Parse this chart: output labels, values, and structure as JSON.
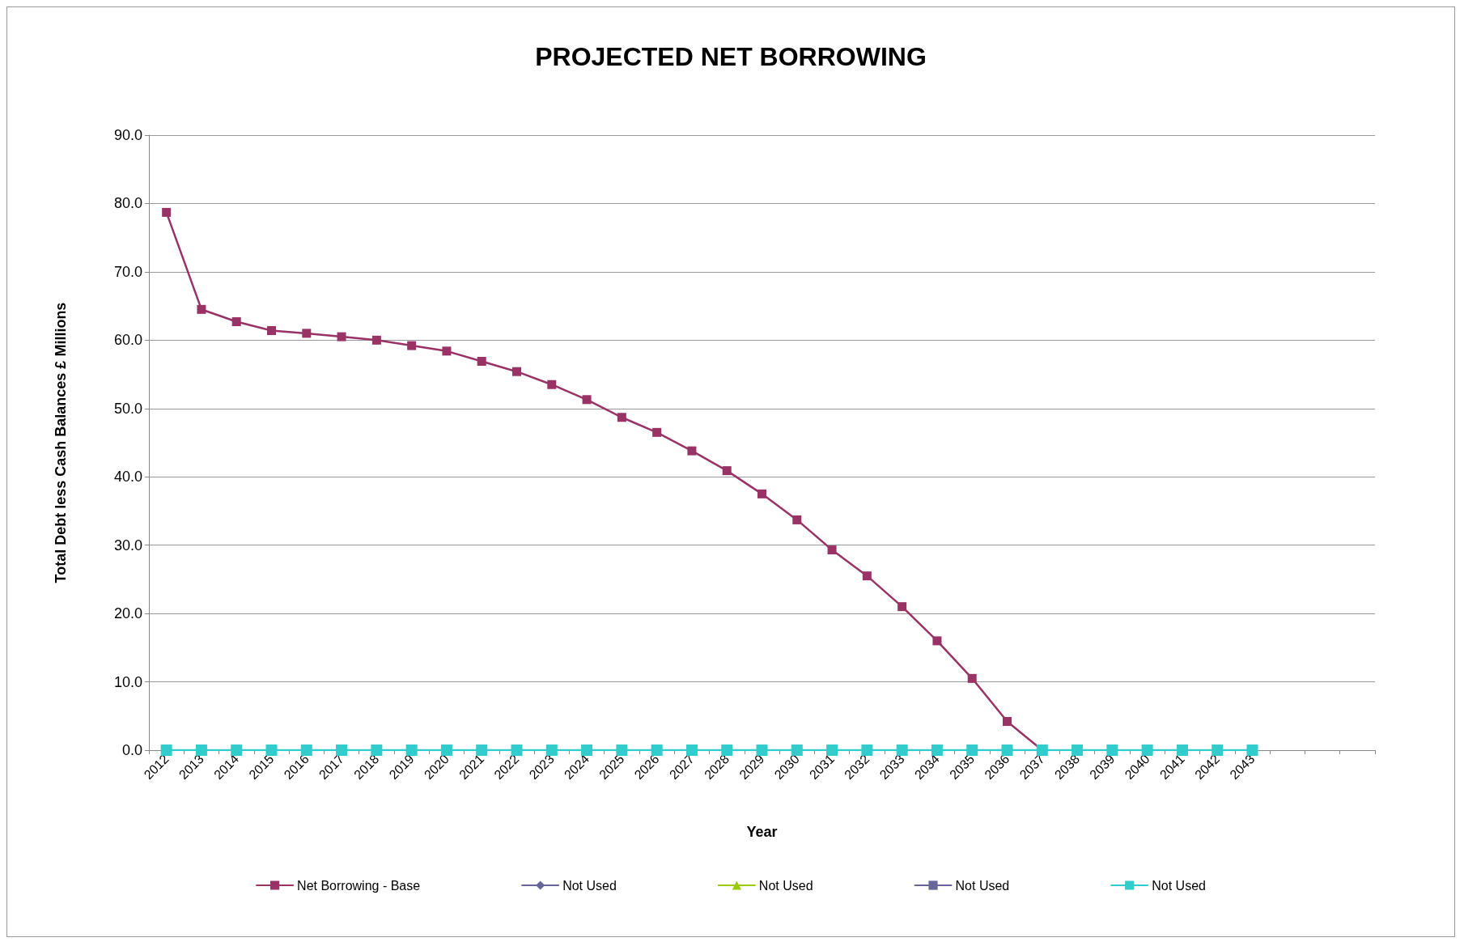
{
  "chart_data": {
    "type": "line",
    "title": "PROJECTED NET BORROWING",
    "xlabel": "Year",
    "ylabel": "Total Debt less Cash Balances £ Millions",
    "categories": [
      "2012",
      "2013",
      "2014",
      "2015",
      "2016",
      "2017",
      "2018",
      "2019",
      "2020",
      "2021",
      "2022",
      "2023",
      "2024",
      "2025",
      "2026",
      "2027",
      "2028",
      "2029",
      "2030",
      "2031",
      "2032",
      "2033",
      "2034",
      "2035",
      "2036",
      "2037",
      "2038",
      "2039",
      "2040",
      "2041",
      "2042",
      "2043",
      null,
      null,
      null
    ],
    "series": [
      {
        "name": "Net Borrowing - Base",
        "color": "#993366",
        "marker": "square",
        "values": [
          78.7,
          64.5,
          62.7,
          61.4,
          61.0,
          60.5,
          60.0,
          59.2,
          58.4,
          56.9,
          55.4,
          53.5,
          51.3,
          48.7,
          46.5,
          43.8,
          40.9,
          37.5,
          33.7,
          29.3,
          25.5,
          21.0,
          16.0,
          10.5,
          4.2,
          0,
          null,
          null,
          null,
          null,
          null,
          null,
          null,
          null,
          null
        ]
      },
      {
        "name": "Not Used",
        "color": "#666699",
        "marker": "diamond",
        "values": [
          null,
          null,
          null,
          null,
          null,
          null,
          null,
          null,
          null,
          null,
          null,
          null,
          null,
          null,
          null,
          null,
          null,
          null,
          null,
          null,
          null,
          null,
          null,
          null,
          null,
          null,
          null,
          null,
          null,
          null,
          null,
          null,
          null,
          null,
          null
        ]
      },
      {
        "name": "Not Used",
        "color": "#99cc00",
        "marker": "triangle",
        "values": [
          null,
          null,
          null,
          null,
          null,
          null,
          null,
          null,
          null,
          null,
          null,
          null,
          null,
          null,
          null,
          null,
          null,
          null,
          null,
          null,
          null,
          null,
          null,
          null,
          null,
          null,
          null,
          null,
          null,
          null,
          null,
          null,
          null,
          null,
          null
        ]
      },
      {
        "name": "Not Used",
        "color": "#666699",
        "marker": "square",
        "values": [
          null,
          null,
          null,
          null,
          null,
          null,
          null,
          null,
          null,
          null,
          null,
          null,
          null,
          null,
          null,
          null,
          null,
          null,
          null,
          null,
          null,
          null,
          null,
          null,
          null,
          null,
          null,
          null,
          null,
          null,
          null,
          null,
          null,
          null,
          null
        ]
      },
      {
        "name": "Not Used",
        "color": "#33cccc",
        "marker": "square",
        "values": [
          0,
          0,
          0,
          0,
          0,
          0,
          0,
          0,
          0,
          0,
          0,
          0,
          0,
          0,
          0,
          0,
          0,
          0,
          0,
          0,
          0,
          0,
          0,
          0,
          0,
          0,
          0,
          0,
          0,
          0,
          0,
          0,
          null,
          null,
          null
        ]
      }
    ],
    "ylim": [
      0,
      90
    ],
    "yticks": [
      {
        "value": 0,
        "label": "0.0"
      },
      {
        "value": 10,
        "label": "10.0"
      },
      {
        "value": 20,
        "label": "20.0"
      },
      {
        "value": 30,
        "label": "30.0"
      },
      {
        "value": 40,
        "label": "40.0"
      },
      {
        "value": 50,
        "label": "50.0"
      },
      {
        "value": 60,
        "label": "60.0"
      },
      {
        "value": 70,
        "label": "70.0"
      },
      {
        "value": 80,
        "label": "80.0"
      },
      {
        "value": 90,
        "label": "90.0"
      }
    ],
    "grid": "y",
    "legend": "bottom",
    "line_style": "solid"
  }
}
